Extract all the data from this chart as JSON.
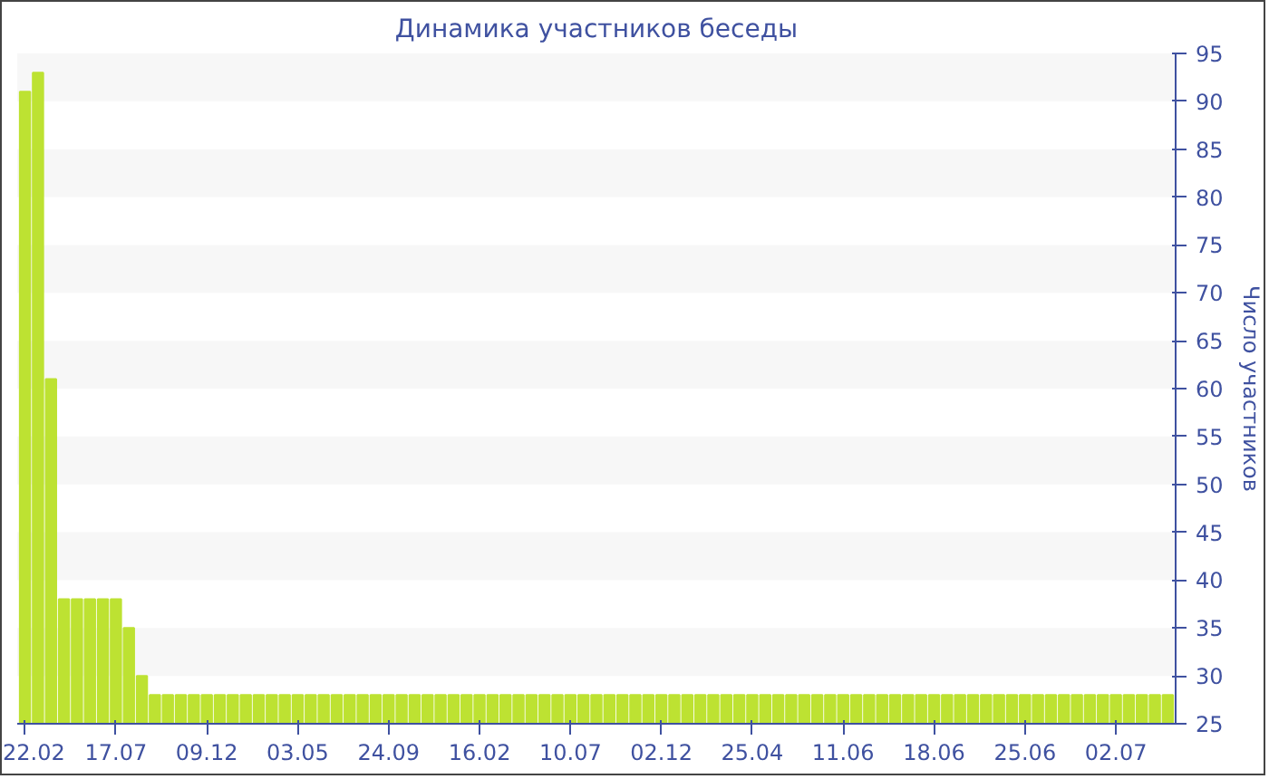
{
  "chart_data": {
    "type": "bar",
    "title": "Динамика участников беседы",
    "ylabel": "Число участников",
    "categories": [
      "22.02",
      null,
      null,
      null,
      null,
      null,
      null,
      "17.07",
      null,
      null,
      null,
      null,
      null,
      null,
      "09.12",
      null,
      null,
      null,
      null,
      null,
      null,
      "03.05",
      null,
      null,
      null,
      null,
      null,
      null,
      "24.09",
      null,
      null,
      null,
      null,
      null,
      null,
      "16.02",
      null,
      null,
      null,
      null,
      null,
      null,
      "10.07",
      null,
      null,
      null,
      null,
      null,
      null,
      "02.12",
      null,
      null,
      null,
      null,
      null,
      null,
      "25.04",
      null,
      null,
      null,
      null,
      null,
      null,
      "11.06",
      null,
      null,
      null,
      null,
      null,
      null,
      "18.06",
      null,
      null,
      null,
      null,
      null,
      null,
      "25.06",
      null,
      null,
      null,
      null,
      null,
      null,
      "02.07",
      null,
      null,
      null,
      null
    ],
    "values": [
      91,
      93,
      61,
      38,
      38,
      38,
      38,
      38,
      35,
      30,
      28,
      28,
      28,
      28,
      28,
      28,
      28,
      28,
      28,
      28,
      28,
      28,
      28,
      28,
      28,
      28,
      28,
      28,
      28,
      28,
      28,
      28,
      28,
      28,
      28,
      28,
      28,
      28,
      28,
      28,
      28,
      28,
      28,
      28,
      28,
      28,
      28,
      28,
      28,
      28,
      28,
      28,
      28,
      28,
      28,
      28,
      28,
      28,
      28,
      28,
      28,
      28,
      28,
      28,
      28,
      28,
      28,
      28,
      28,
      28,
      28,
      28,
      28,
      28,
      28,
      28,
      28,
      28,
      28,
      28,
      28,
      28,
      28,
      28,
      28,
      28,
      28,
      28,
      28
    ],
    "color": "#bde232",
    "ylim": [
      25,
      95
    ],
    "yticks": [
      25,
      30,
      35,
      40,
      45,
      50,
      55,
      60,
      65,
      70,
      75,
      80,
      85,
      90,
      95
    ]
  }
}
